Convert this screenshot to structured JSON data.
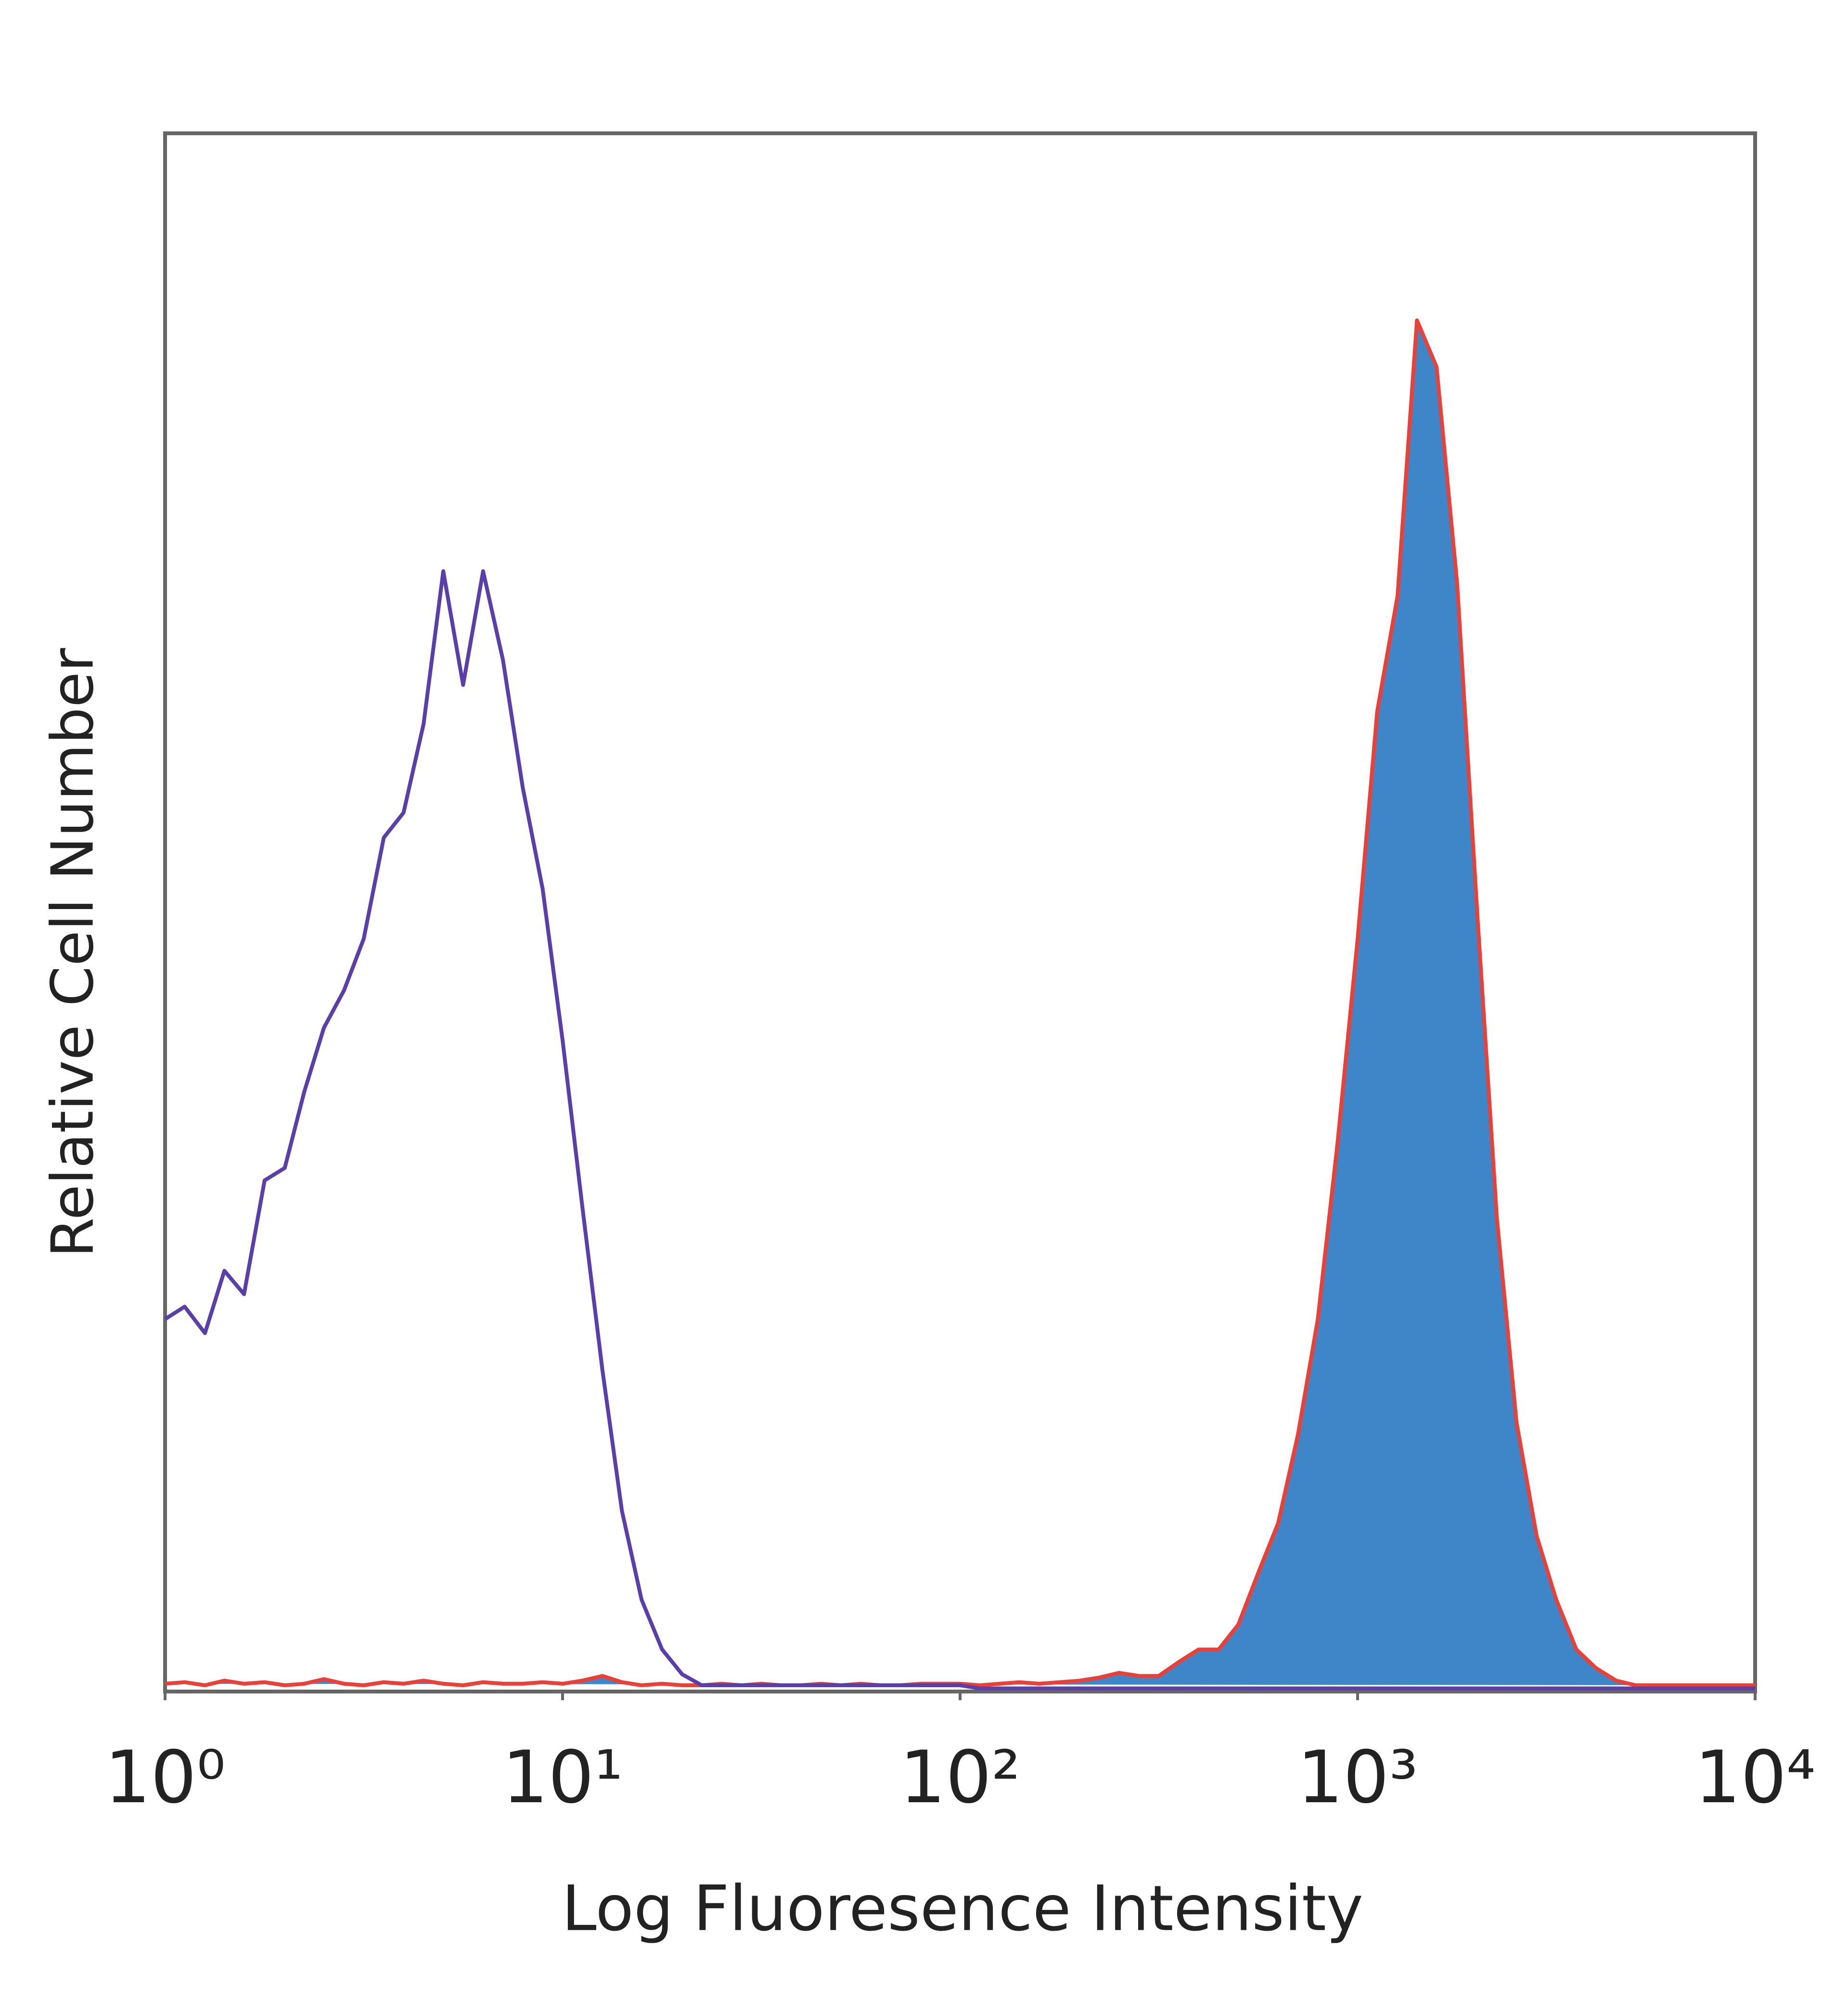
{
  "chart_data": {
    "type": "histogram-overlay",
    "x_label": "Log Fluoresence Intensity",
    "y_label": "Relative Cell Number",
    "xscale": "log",
    "xlim": [
      1,
      10000
    ],
    "ylim": [
      0,
      100
    ],
    "xticks": [
      {
        "value": 1,
        "label": "10⁰"
      },
      {
        "value": 10,
        "label": "10¹"
      },
      {
        "value": 100,
        "label": "10²"
      },
      {
        "value": 1000,
        "label": "10³"
      },
      {
        "value": 10000,
        "label": "10⁴"
      }
    ],
    "x": [
      1,
      1.12,
      1.26,
      1.41,
      1.58,
      1.78,
      2,
      2.24,
      2.51,
      2.82,
      3.16,
      3.55,
      3.98,
      4.47,
      5.01,
      5.62,
      6.31,
      7.08,
      7.94,
      8.91,
      10,
      11.2,
      12.6,
      14.1,
      15.8,
      17.8,
      20,
      22.4,
      25.1,
      28.2,
      31.6,
      35.5,
      39.8,
      44.7,
      50.1,
      56.2,
      63.1,
      70.8,
      79.4,
      89.1,
      100,
      112,
      126,
      141,
      158,
      178,
      200,
      224,
      251,
      282,
      316,
      355,
      398,
      447,
      501,
      562,
      631,
      708,
      794,
      891,
      1000,
      1120,
      1260,
      1410,
      1580,
      1780,
      2000,
      2240,
      2510,
      2820,
      3160,
      3550,
      3980,
      4470,
      5010,
      5620,
      6310,
      7080,
      7940,
      8910,
      10000
    ],
    "series": [
      {
        "color": "#5b3fa8",
        "fill": "none",
        "values": [
          23.9,
          24.7,
          23,
          27,
          25.5,
          32.8,
          33.6,
          38.5,
          42.6,
          45,
          48.3,
          54.8,
          56.4,
          62.1,
          71.9,
          64.6,
          71.9,
          66.2,
          58,
          51.5,
          41.8,
          31.2,
          20.6,
          11.6,
          5.9,
          2.7,
          1.1,
          0.4,
          0.4,
          0.4,
          0.4,
          0.4,
          0.4,
          0.4,
          0.4,
          0.4,
          0.4,
          0.4,
          0.4,
          0.4,
          0.4,
          0.2,
          0.2,
          0.2,
          0.2,
          0.2,
          0.2,
          0.2,
          0.2,
          0.2,
          0.2,
          0.2,
          0.2,
          0.2,
          0.2,
          0.2,
          0.2,
          0.2,
          0.2,
          0.2,
          0.2,
          0.2,
          0.2,
          0.2,
          0.2,
          0.2,
          0.2,
          0.2,
          0.2,
          0.2,
          0.2,
          0.2,
          0.2,
          0.2,
          0.2,
          0.2,
          0.2,
          0.2,
          0.2,
          0.2,
          0.2
        ]
      },
      {
        "color": "#e8413a",
        "fill": "#3f86c8",
        "values": [
          0.5,
          0.6,
          0.4,
          0.7,
          0.5,
          0.6,
          0.4,
          0.5,
          0.8,
          0.5,
          0.4,
          0.6,
          0.5,
          0.7,
          0.5,
          0.4,
          0.6,
          0.5,
          0.5,
          0.6,
          0.5,
          0.7,
          1,
          0.6,
          0.4,
          0.5,
          0.4,
          0.4,
          0.5,
          0.4,
          0.5,
          0.4,
          0.4,
          0.5,
          0.4,
          0.5,
          0.4,
          0.4,
          0.5,
          0.5,
          0.5,
          0.4,
          0.5,
          0.6,
          0.5,
          0.6,
          0.7,
          0.9,
          1.2,
          1,
          1,
          1.9,
          2.7,
          2.7,
          4.3,
          7.6,
          10.8,
          16.5,
          23.9,
          35.3,
          48.3,
          62.9,
          70.3,
          88,
          85,
          71.1,
          49.9,
          30.4,
          17.3,
          10,
          5.9,
          2.7,
          1.5,
          0.7,
          0.4,
          0.4,
          0.4,
          0.4,
          0.4,
          0.4,
          0.4
        ]
      }
    ]
  }
}
